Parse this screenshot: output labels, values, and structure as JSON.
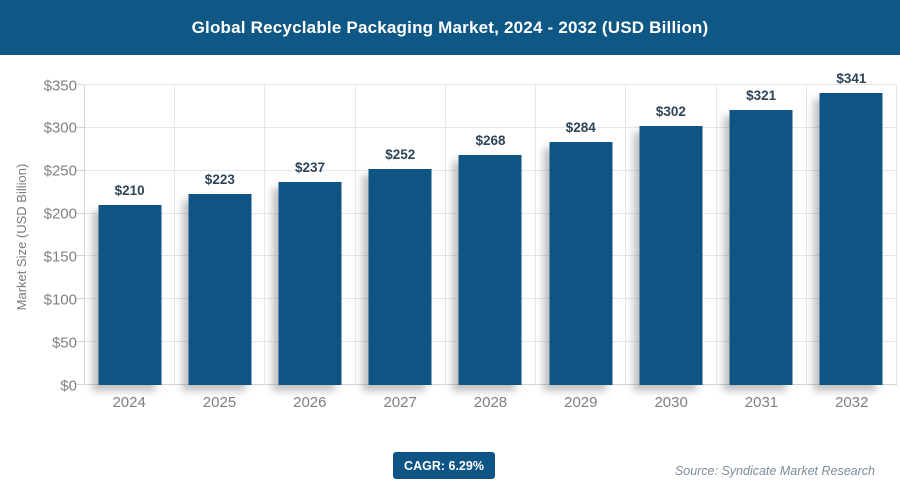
{
  "header": {
    "title": "Global Recyclable Packaging Market, 2024 - 2032 (USD Billion)"
  },
  "chart_data": {
    "type": "bar",
    "title": "Global Recyclable Packaging Market, 2024 - 2032 (USD Billion)",
    "categories": [
      "2024",
      "2025",
      "2026",
      "2027",
      "2028",
      "2029",
      "2030",
      "2031",
      "2032"
    ],
    "values": [
      210,
      223,
      237,
      252,
      268,
      284,
      302,
      321,
      341
    ],
    "value_labels": [
      "$210",
      "$223",
      "$237",
      "$252",
      "$268",
      "$284",
      "$302",
      "$321",
      "$341"
    ],
    "xlabel": "",
    "ylabel": "Market Size (USD Billion)",
    "ylim": [
      0,
      350
    ],
    "ytick_step": 50,
    "ytick_labels": [
      "$0",
      "$50",
      "$100",
      "$150",
      "$200",
      "$250",
      "$300",
      "$350"
    ],
    "grid": true,
    "legend": "none",
    "bar_color": "#0e5585"
  },
  "footer": {
    "cagr_label": "CAGR: 6.29%",
    "source": "Source: Syndicate Market Research"
  },
  "colors": {
    "header_bg": "#0f5886",
    "bar": "#0e5585",
    "badge_bg": "#0e5585",
    "data_label": "#2e4457",
    "tick_label": "#818181",
    "gridline": "#e6e6e6",
    "axis_line": "#d4d4d4",
    "source_text": "#7d8c99"
  }
}
